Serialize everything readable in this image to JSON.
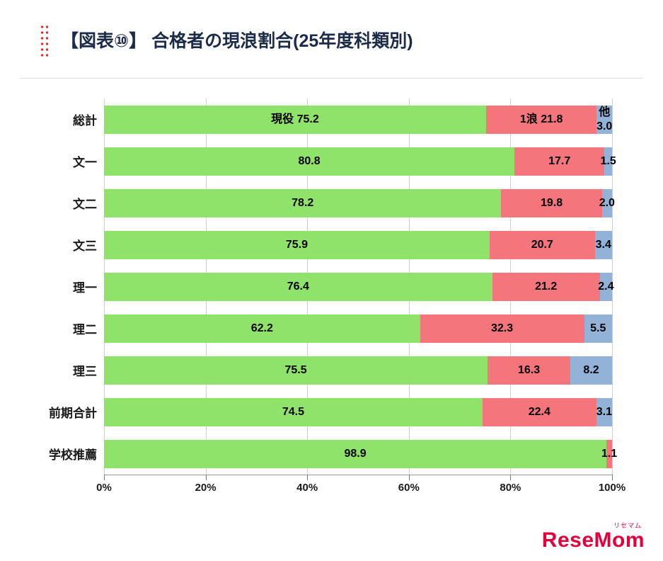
{
  "header": {
    "title": "【図表⑩】 合格者の現浪割合(25年度科類別)"
  },
  "logo": {
    "text": "ReseMom",
    "ruby": "リセマム"
  },
  "chart_data": {
    "type": "bar",
    "orientation": "horizontal",
    "stacked": true,
    "title": "合格者の現浪割合(25年度科類別)",
    "categories": [
      "総計",
      "文一",
      "文二",
      "文三",
      "理一",
      "理二",
      "理三",
      "前期合計",
      "学校推薦"
    ],
    "series": [
      {
        "name": "現役",
        "color": "#8fe36a",
        "values": [
          75.2,
          80.8,
          78.2,
          75.9,
          76.4,
          62.2,
          75.5,
          74.5,
          98.9
        ]
      },
      {
        "name": "1浪",
        "color": "#f4757b",
        "values": [
          21.8,
          17.7,
          19.8,
          20.7,
          21.2,
          32.3,
          16.3,
          22.4,
          1.1
        ]
      },
      {
        "name": "他",
        "color": "#92b2d7",
        "values": [
          3.0,
          1.5,
          2.0,
          3.4,
          2.4,
          5.5,
          8.2,
          3.1,
          0
        ]
      }
    ],
    "xlim": [
      0,
      100
    ],
    "x_ticks": [
      "0%",
      "20%",
      "40%",
      "60%",
      "80%",
      "100%"
    ],
    "grid": true,
    "legend": "none",
    "first_row_shows_series_names": true
  }
}
